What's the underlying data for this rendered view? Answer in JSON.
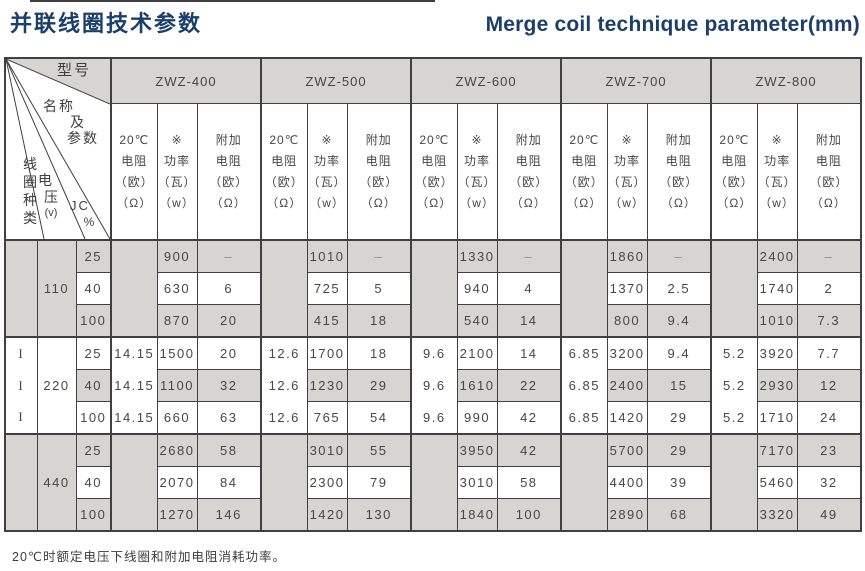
{
  "page": {
    "title_zh": "并联线圈技术参数",
    "title_en": "Merge coil technique parameter(mm)",
    "footnote": "20℃时额定电压下线圈和附加电阻消耗功率。",
    "colors": {
      "accent": "#1c3e6b",
      "stripe": "#d6d5d2",
      "grid": "#404040"
    }
  },
  "corner": {
    "model": "型号",
    "name1": "名称",
    "name2": "及",
    "name3": "参数",
    "coil_type": "线圈种类",
    "voltage": "电压",
    "voltage_unit": "(v)",
    "jc": "JC",
    "jc_unit": "%"
  },
  "models": [
    "ZWZ-400",
    "ZWZ-500",
    "ZWZ-600",
    "ZWZ-700",
    "ZWZ-800"
  ],
  "subheaders": [
    [
      "20℃",
      "电阻",
      "（欧）",
      "（Ω）"
    ],
    [
      "※",
      "功率",
      "（瓦）",
      "（w）"
    ],
    [
      "附加",
      "电阻",
      "（欧）",
      "（Ω）"
    ]
  ],
  "groups": [
    {
      "kind": "",
      "voltage": "110",
      "resistance": [
        "",
        "",
        "",
        "",
        ""
      ],
      "rows": [
        {
          "jc": "25",
          "cells": [
            [
              "900",
              "–"
            ],
            [
              "1010",
              "–"
            ],
            [
              "1330",
              "–"
            ],
            [
              "1860",
              "–"
            ],
            [
              "2400",
              "–"
            ]
          ]
        },
        {
          "jc": "40",
          "cells": [
            [
              "630",
              "6"
            ],
            [
              "725",
              "5"
            ],
            [
              "940",
              "4"
            ],
            [
              "1370",
              "2.5"
            ],
            [
              "1740",
              "2"
            ]
          ]
        },
        {
          "jc": "100",
          "cells": [
            [
              "870",
              "20"
            ],
            [
              "415",
              "18"
            ],
            [
              "540",
              "14"
            ],
            [
              "800",
              "9.4"
            ],
            [
              "1010",
              "7.3"
            ]
          ]
        }
      ]
    },
    {
      "kind": "I",
      "voltage": "220",
      "resistance": [
        "14.15",
        "12.6",
        "9.6",
        "6.85",
        "5.2"
      ],
      "rows": [
        {
          "jc": "25",
          "cells": [
            [
              "1500",
              "20"
            ],
            [
              "1700",
              "18"
            ],
            [
              "2100",
              "14"
            ],
            [
              "3200",
              "9.4"
            ],
            [
              "3920",
              "7.7"
            ]
          ]
        },
        {
          "jc": "40",
          "cells": [
            [
              "1100",
              "32"
            ],
            [
              "1230",
              "29"
            ],
            [
              "1610",
              "22"
            ],
            [
              "2400",
              "15"
            ],
            [
              "2930",
              "12"
            ]
          ]
        },
        {
          "jc": "100",
          "cells": [
            [
              "660",
              "63"
            ],
            [
              "765",
              "54"
            ],
            [
              "990",
              "42"
            ],
            [
              "1420",
              "29"
            ],
            [
              "1710",
              "24"
            ]
          ]
        }
      ]
    },
    {
      "kind": "",
      "voltage": "440",
      "resistance": [
        "",
        "",
        "",
        "",
        ""
      ],
      "rows": [
        {
          "jc": "25",
          "cells": [
            [
              "2680",
              "58"
            ],
            [
              "3010",
              "55"
            ],
            [
              "3950",
              "42"
            ],
            [
              "5700",
              "29"
            ],
            [
              "7170",
              "23"
            ]
          ]
        },
        {
          "jc": "40",
          "cells": [
            [
              "2070",
              "84"
            ],
            [
              "2300",
              "79"
            ],
            [
              "3010",
              "58"
            ],
            [
              "4400",
              "39"
            ],
            [
              "5460",
              "32"
            ]
          ]
        },
        {
          "jc": "100",
          "cells": [
            [
              "1270",
              "146"
            ],
            [
              "1420",
              "130"
            ],
            [
              "1840",
              "100"
            ],
            [
              "2890",
              "68"
            ],
            [
              "3320",
              "49"
            ]
          ]
        }
      ]
    }
  ]
}
